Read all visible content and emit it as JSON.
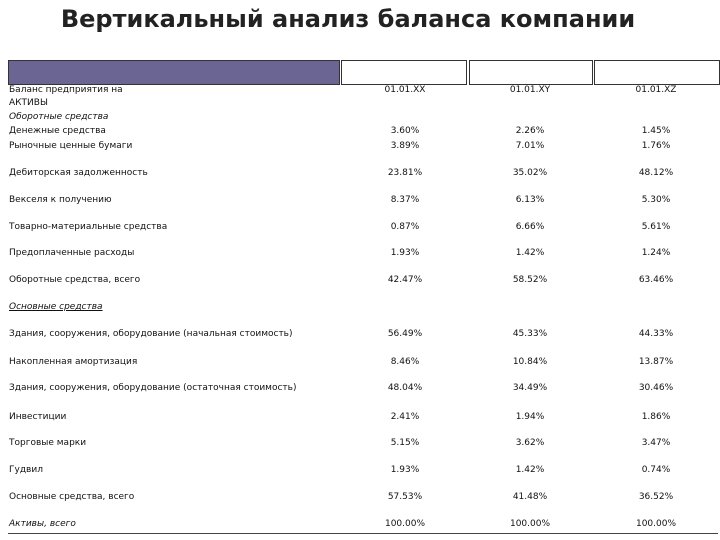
{
  "title": "Вертикальный анализ баланса компании",
  "table": {
    "columns": [
      "01.01.XX",
      "01.01.XY",
      "01.01.XZ"
    ],
    "rows": [
      {
        "label": "Баланс предприятия на"
      },
      {
        "label": "АКТИВЫ"
      },
      {
        "label": "Оборотные средства",
        "italic": true
      },
      {
        "label": "Денежные средства",
        "values": [
          "3.60%",
          "2.26%",
          "1.45%"
        ]
      },
      {
        "label": "Рыночные ценные бумаги",
        "values": [
          "3.89%",
          "7.01%",
          "1.76%"
        ]
      },
      {
        "label": "Дебиторская задолженность",
        "values": [
          "23.81%",
          "35.02%",
          "48.12%"
        ]
      },
      {
        "label": "Векселя к получению",
        "values": [
          "8.37%",
          "6.13%",
          "5.30%"
        ]
      },
      {
        "label": "Товарно-материальные средства",
        "values": [
          "0.87%",
          "6.66%",
          "5.61%"
        ]
      },
      {
        "label": "Предоплаченные расходы",
        "values": [
          "1.93%",
          "1.42%",
          "1.24%"
        ]
      },
      {
        "label": "Оборотные средства, всего",
        "values": [
          "42.47%",
          "58.52%",
          "63.46%"
        ]
      },
      {
        "label": "Основные средства",
        "italic": true
      },
      {
        "label": "Здания, сооружения, оборудование (начальная стоимость)",
        "values": [
          "56.49%",
          "45.33%",
          "44.33%"
        ]
      },
      {
        "label": "Накопленная амортизация",
        "values": [
          "8.46%",
          "10.84%",
          "13.87%"
        ]
      },
      {
        "label": "Здания, сооружения, оборудование (остаточная стоимость)",
        "values": [
          "48.04%",
          "34.49%",
          "30.46%"
        ]
      },
      {
        "label": "Инвестиции",
        "values": [
          "2.41%",
          "1.94%",
          "1.86%"
        ]
      },
      {
        "label": "Торговые марки",
        "values": [
          "5.15%",
          "3.62%",
          "3.47%"
        ]
      },
      {
        "label": "Гудвил",
        "values": [
          "1.93%",
          "1.42%",
          "0.74%"
        ]
      },
      {
        "label": "Основные средства, всего",
        "values": [
          "57.53%",
          "41.48%",
          "36.52%"
        ]
      },
      {
        "label": "Активы, всего",
        "italic": true,
        "values": [
          "100.00%",
          "100.00%",
          "100.00%"
        ]
      }
    ]
  }
}
